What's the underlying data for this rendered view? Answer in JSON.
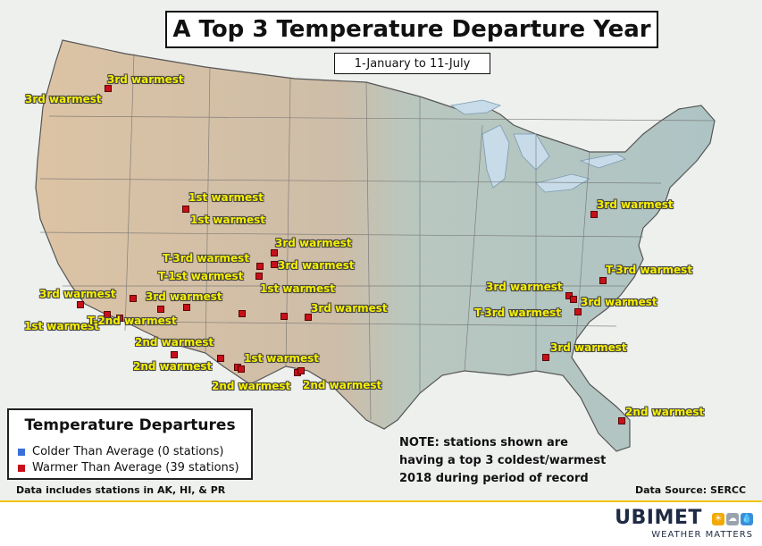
{
  "title": "A Top 3 Temperature Departure Year",
  "subtitle": "1-January to 11-July",
  "colors": {
    "warmer": "#c8101a",
    "colder": "#3a6fd8",
    "label": "#f7f000",
    "land_west": "#d9c2a6",
    "land_east": "#b6c9c8",
    "water": "#c7dbe8",
    "accent": "#f2c500"
  },
  "stations": [
    {
      "label": "3rd warmest"
    },
    {
      "label": "1st warmest"
    },
    {
      "label": "1st warmest"
    },
    {
      "label": "3rd warmest"
    },
    {
      "label": "3rd warmest"
    },
    {
      "label": "T-3rd warmest"
    },
    {
      "label": "T-1st warmest"
    },
    {
      "label": "1st warmest"
    },
    {
      "label": "3rd warmest"
    },
    {
      "label": "3rd warmest"
    },
    {
      "label": "1st warmest"
    },
    {
      "label": "T-2nd warmest"
    },
    {
      "label": "3rd warmest"
    },
    {
      "label": "2nd warmest"
    },
    {
      "label": "2nd warmest"
    },
    {
      "label": "1st warmest"
    },
    {
      "label": "2nd warmest"
    },
    {
      "label": "2nd warmest"
    },
    {
      "label": "3rd warmest"
    },
    {
      "label": "T-3rd warmest"
    },
    {
      "label": "3rd warmest"
    },
    {
      "label": "3rd warmest"
    },
    {
      "label": "T-3rd warmest"
    },
    {
      "label": "3rd warmest"
    },
    {
      "label": "2nd warmest"
    }
  ],
  "legend": {
    "title": "Temperature Departures",
    "items": [
      {
        "label": "Colder Than Average (0 stations)",
        "color": "#3a6fd8"
      },
      {
        "label": "Warmer Than Average (39 stations)",
        "color": "#c8101a"
      }
    ]
  },
  "note": "NOTE: stations shown are having a top 3 coldest/warmest 2018 during period of record",
  "footnote_left": "Data includes stations in AK, HI, & PR",
  "footnote_right": "Data Source: SERCC",
  "logo": {
    "name": "UBIMET",
    "tagline": "WEATHER MATTERS"
  }
}
